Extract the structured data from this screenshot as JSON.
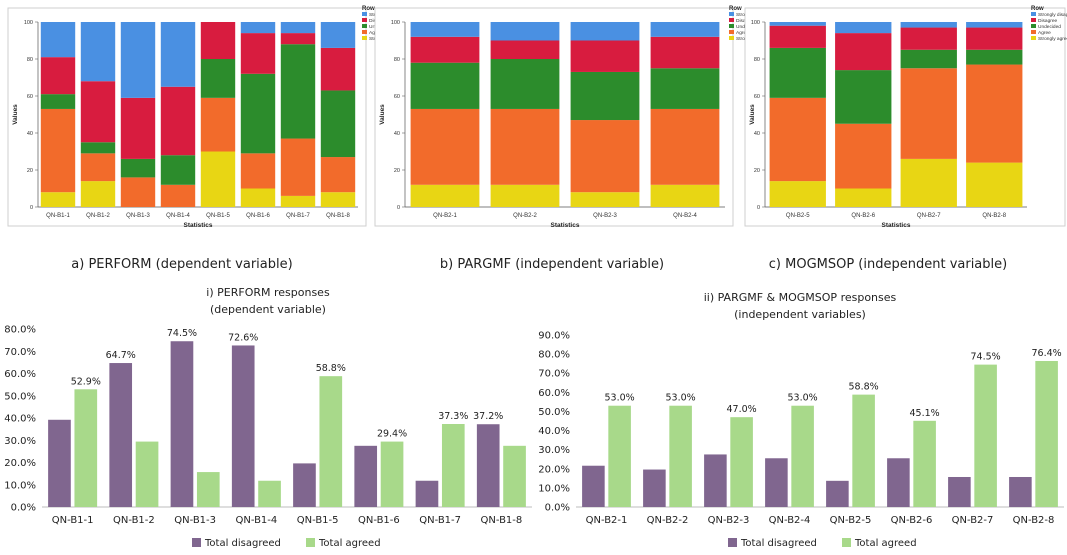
{
  "colors": {
    "strongly_disagree": "#4a90e2",
    "disagree": "#d81c3f",
    "undecided": "#2c8c2c",
    "agree": "#f26b2b",
    "strongly_agree": "#e8d614",
    "total_disagreed": "#80668f",
    "total_agreed": "#a8d98a"
  },
  "chart_data": [
    {
      "id": "a",
      "type": "bar",
      "stacked": true,
      "caption": "a) PERFORM (dependent variable)",
      "xlabel": "Statistics",
      "ylabel": "Values",
      "ylim": [
        0,
        100
      ],
      "yticks": [
        "0",
        "20",
        "40",
        "60",
        "80",
        "100"
      ],
      "legend_title": "Row",
      "legend_position": "top-right",
      "categories": [
        "QN-B1-1",
        "QN-B1-2",
        "QN-B1-3",
        "QN-B1-4",
        "QN-B1-5",
        "QN-B1-6",
        "QN-B1-7",
        "QN-B1-8"
      ],
      "series": [
        {
          "name": "Strongly agree",
          "values": [
            8,
            14,
            0,
            0,
            30,
            10,
            6,
            8
          ]
        },
        {
          "name": "Agree",
          "values": [
            45,
            15,
            16,
            12,
            29,
            19,
            31,
            19
          ]
        },
        {
          "name": "Undecided",
          "values": [
            8,
            6,
            10,
            16,
            21,
            43,
            51,
            36
          ]
        },
        {
          "name": "Disagree",
          "values": [
            20,
            33,
            33,
            37,
            20,
            22,
            6,
            23
          ]
        },
        {
          "name": "Strongly disagree",
          "values": [
            19,
            32,
            41,
            35,
            0,
            6,
            6,
            14
          ]
        }
      ]
    },
    {
      "id": "b",
      "type": "bar",
      "stacked": true,
      "caption": "b) PARGMF (independent variable)",
      "xlabel": "Statistics",
      "ylabel": "Values",
      "ylim": [
        0,
        100
      ],
      "yticks": [
        "0",
        "20",
        "40",
        "60",
        "80",
        "100"
      ],
      "legend_title": "Row",
      "legend_position": "top-right",
      "categories": [
        "QN-B2-1",
        "QN-B2-2",
        "QN-B2-3",
        "QN-B2-4"
      ],
      "series": [
        {
          "name": "Strongly agree",
          "values": [
            12,
            12,
            8,
            12
          ]
        },
        {
          "name": "Agree",
          "values": [
            41,
            41,
            39,
            41
          ]
        },
        {
          "name": "Undecided",
          "values": [
            25,
            27,
            26,
            22
          ]
        },
        {
          "name": "Disagree",
          "values": [
            14,
            10,
            17,
            17
          ]
        },
        {
          "name": "Strongly disagree",
          "values": [
            8,
            10,
            10,
            8
          ]
        }
      ]
    },
    {
      "id": "c",
      "type": "bar",
      "stacked": true,
      "caption": "c) MOGMSOP (independent variable)",
      "xlabel": "Statistics",
      "ylabel": "Values",
      "ylim": [
        0,
        100
      ],
      "yticks": [
        "0",
        "20",
        "40",
        "60",
        "80",
        "100"
      ],
      "legend_title": "Row",
      "legend_position": "top-right",
      "categories": [
        "QN-B2-5",
        "QN-B2-6",
        "QN-B2-7",
        "QN-B2-8"
      ],
      "series": [
        {
          "name": "Strongly agree",
          "values": [
            14,
            10,
            26,
            24
          ]
        },
        {
          "name": "Agree",
          "values": [
            45,
            35,
            49,
            53
          ]
        },
        {
          "name": "Undecided",
          "values": [
            27,
            29,
            10,
            8
          ]
        },
        {
          "name": "Disagree",
          "values": [
            12,
            20,
            12,
            12
          ]
        },
        {
          "name": "Strongly disagree",
          "values": [
            2,
            6,
            3,
            3
          ]
        }
      ]
    },
    {
      "id": "d",
      "type": "bar",
      "title_lines": [
        "i) PERFORM responses",
        "(dependent variable)"
      ],
      "ylim": [
        0,
        80
      ],
      "yticks": [
        "0.0%",
        "10.0%",
        "20.0%",
        "30.0%",
        "40.0%",
        "50.0%",
        "60.0%",
        "70.0%",
        "80.0%"
      ],
      "legend_position": "bottom",
      "categories": [
        "QN-B1-1",
        "QN-B1-2",
        "QN-B1-3",
        "QN-B1-4",
        "QN-B1-5",
        "QN-B1-6",
        "QN-B1-7",
        "QN-B1-8"
      ],
      "series": [
        {
          "name": "Total disagreed",
          "values": [
            39.2,
            64.7,
            74.5,
            72.6,
            19.6,
            27.5,
            11.8,
            37.2
          ]
        },
        {
          "name": "Total agreed",
          "values": [
            52.9,
            29.4,
            15.7,
            11.8,
            58.8,
            29.4,
            37.3,
            27.5
          ]
        }
      ],
      "data_labels": [
        {
          "category": "QN-B1-1",
          "text": "52.9%"
        },
        {
          "category": "QN-B1-2",
          "text": "64.7%"
        },
        {
          "category": "QN-B1-3",
          "text": "74.5%"
        },
        {
          "category": "QN-B1-4",
          "text": "72.6%"
        },
        {
          "category": "QN-B1-5",
          "text": "58.8%"
        },
        {
          "category": "QN-B1-6",
          "text": "29.4%"
        },
        {
          "category": "QN-B1-7",
          "text": "37.3%"
        },
        {
          "category": "QN-B1-8",
          "text": "37.2%"
        }
      ]
    },
    {
      "id": "e",
      "type": "bar",
      "title_lines": [
        "ii) PARGMF & MOGMSOP responses",
        "(independent variables)"
      ],
      "ylim": [
        0,
        90
      ],
      "yticks": [
        "0.0%",
        "10.0%",
        "20.0%",
        "30.0%",
        "40.0%",
        "50.0%",
        "60.0%",
        "70.0%",
        "80.0%",
        "90.0%"
      ],
      "legend_position": "bottom",
      "categories": [
        "QN-B2-1",
        "QN-B2-2",
        "QN-B2-3",
        "QN-B2-4",
        "QN-B2-5",
        "QN-B2-6",
        "QN-B2-7",
        "QN-B2-8"
      ],
      "series": [
        {
          "name": "Total disagreed",
          "values": [
            21.6,
            19.6,
            27.5,
            25.5,
            13.7,
            25.5,
            15.7,
            15.7
          ]
        },
        {
          "name": "Total agreed",
          "values": [
            53.0,
            53.0,
            47.0,
            53.0,
            58.8,
            45.1,
            74.5,
            76.4
          ]
        }
      ],
      "data_labels": [
        {
          "category": "QN-B2-1",
          "text": "53.0%"
        },
        {
          "category": "QN-B2-2",
          "text": "53.0%"
        },
        {
          "category": "QN-B2-3",
          "text": "47.0%"
        },
        {
          "category": "QN-B2-4",
          "text": "53.0%"
        },
        {
          "category": "QN-B2-5",
          "text": "58.8%"
        },
        {
          "category": "QN-B2-6",
          "text": "45.1%"
        },
        {
          "category": "QN-B2-7",
          "text": "74.5%"
        },
        {
          "category": "QN-B2-8",
          "text": "76.4%"
        }
      ]
    }
  ]
}
